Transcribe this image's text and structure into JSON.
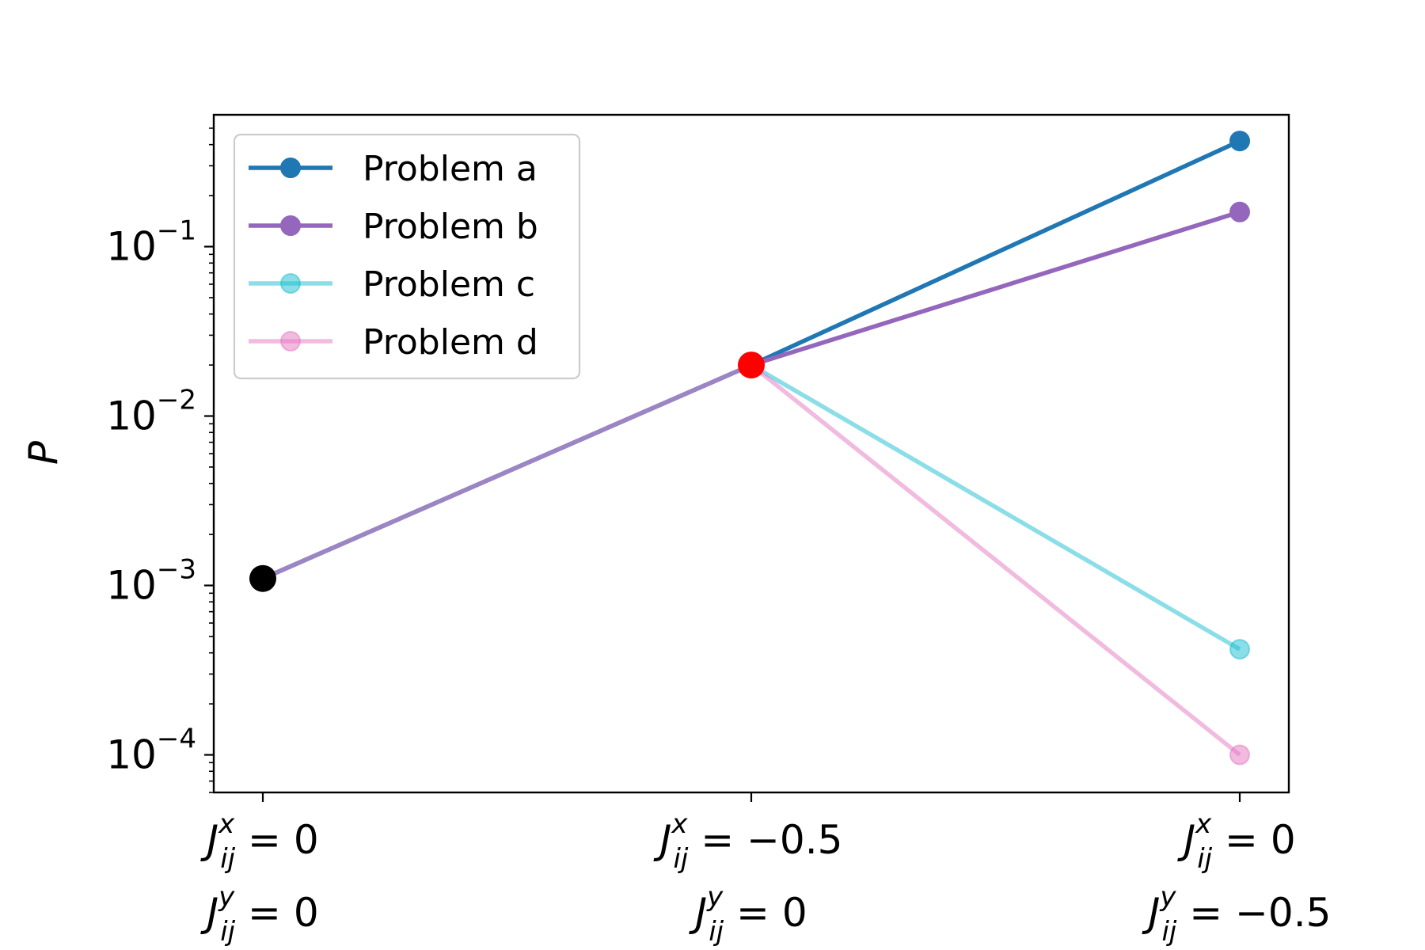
{
  "chart_data": {
    "type": "line",
    "title": "",
    "ylabel": "P",
    "yscale": "log",
    "ylim": [
      6e-05,
      0.6
    ],
    "categories": [
      {
        "x_label": "J",
        "x_sub": "ij",
        "x_sup": "x",
        "x_value": "= 0",
        "y_label": "J",
        "y_sub": "ij",
        "y_sup": "y",
        "y_value": "= 0"
      },
      {
        "x_label": "J",
        "x_sub": "ij",
        "x_sup": "x",
        "x_value": "= −0.5",
        "y_label": "J",
        "y_sub": "ij",
        "y_sup": "y",
        "y_value": "= 0"
      },
      {
        "x_label": "J",
        "x_sub": "ij",
        "x_sup": "x",
        "x_value": "= 0",
        "y_label": "J",
        "y_sub": "ij",
        "y_sup": "y",
        "y_value": "= −0.5"
      }
    ],
    "yticks": [
      {
        "base": "10",
        "exp": "−4",
        "value": 0.0001
      },
      {
        "base": "10",
        "exp": "−3",
        "value": 0.001
      },
      {
        "base": "10",
        "exp": "−2",
        "value": 0.01
      },
      {
        "base": "10",
        "exp": "−1",
        "value": 0.1
      }
    ],
    "series": [
      {
        "name": "Problem a",
        "color": "#1f77b4",
        "alpha": 1.0,
        "values": [
          0.0011,
          0.02,
          0.42
        ]
      },
      {
        "name": "Problem b",
        "color": "#9467bd",
        "alpha": 1.0,
        "values": [
          0.0011,
          0.02,
          0.16
        ]
      },
      {
        "name": "Problem c",
        "color": "#17becf",
        "alpha": 0.5,
        "values": [
          0.0011,
          0.02,
          0.00042
        ]
      },
      {
        "name": "Problem d",
        "color": "#e377c2",
        "alpha": 0.5,
        "values": [
          0.0011,
          0.02,
          0.0001
        ]
      }
    ],
    "start_point": {
      "value": 0.0011,
      "color": "#000000"
    },
    "mid_point": {
      "value": 0.02,
      "color": "#ff0000"
    },
    "legend": "top-left",
    "grid": false
  }
}
